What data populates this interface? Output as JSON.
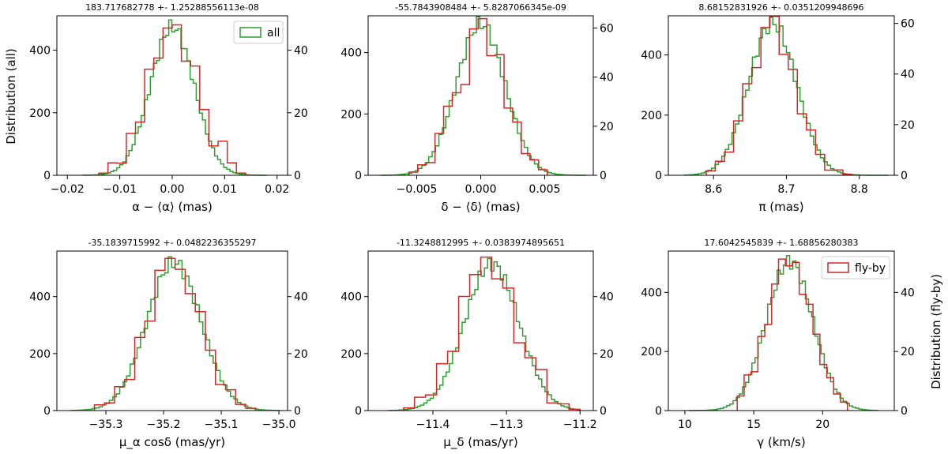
{
  "figure": {
    "left_ylabel": "Distribution (all)",
    "right_ylabel": "Distribution (fly-by)",
    "colors": {
      "all": "#2ca02c",
      "flyby": "#d62728",
      "axes": "#000000"
    }
  },
  "chart_data": [
    {
      "type": "histogram",
      "title": "183.717682778 +- 1.25288556113e-08",
      "xlabel": "α − ⟨α⟩ (mas)",
      "xlim": [
        -0.022,
        0.022
      ],
      "xticks": [
        -0.02,
        -0.01,
        0.0,
        0.01,
        0.02
      ],
      "xtick_labels": [
        "−0.02",
        "−0.01",
        "0.00",
        "0.01",
        "0.02"
      ],
      "ylim_left": [
        0,
        510
      ],
      "yticks_left": [
        0,
        200,
        400
      ],
      "ylim_right": [
        0,
        51
      ],
      "yticks_right": [
        0,
        20,
        40
      ],
      "legend": {
        "label": "all",
        "color": "#2ca02c",
        "placement": "top-right"
      },
      "series": [
        {
          "name": "all",
          "color": "#2ca02c",
          "mean": 0.0,
          "sigma": 0.0042,
          "peak": 475,
          "xmin": -0.017,
          "xmax": 0.018,
          "nbins": 60
        },
        {
          "name": "fly-by",
          "color": "#d62728",
          "mean": 0.0,
          "sigma": 0.0045,
          "peak": 48,
          "xmin": -0.014,
          "xmax": 0.014,
          "nbins": 16,
          "jitter": [
            0,
            2,
            -1,
            3,
            -2,
            4,
            -3,
            0,
            1,
            -4,
            5,
            2,
            -1,
            6,
            2,
            0
          ]
        }
      ]
    },
    {
      "type": "histogram",
      "title": "-55.7843908484 +- 5.8287066345e-09",
      "xlabel": "δ − ⟨δ⟩ (mas)",
      "xlim": [
        -0.0088,
        0.0088
      ],
      "xticks": [
        -0.005,
        0.0,
        0.005
      ],
      "xtick_labels": [
        "−0.005",
        "0.000",
        "0.005"
      ],
      "ylim_left": [
        0,
        520
      ],
      "yticks_left": [
        0,
        200,
        400
      ],
      "ylim_right": [
        0,
        65
      ],
      "yticks_right": [
        0,
        20,
        40,
        60
      ],
      "series": [
        {
          "name": "all",
          "color": "#2ca02c",
          "mean": 0.0,
          "sigma": 0.0019,
          "peak": 495,
          "xmin": -0.0078,
          "xmax": 0.0082,
          "nbins": 60
        },
        {
          "name": "fly-by",
          "color": "#d62728",
          "mean": 0.0,
          "sigma": 0.0019,
          "peak": 60,
          "xmin": -0.0056,
          "xmax": 0.0052,
          "nbins": 16,
          "jitter": [
            0,
            1,
            -2,
            3,
            4,
            -3,
            -12,
            2,
            4,
            -6,
            5,
            -4,
            2,
            -2,
            1,
            0
          ]
        }
      ]
    },
    {
      "type": "histogram",
      "title": "8.68152831926 +- 0.0351209948696",
      "xlabel": "π (mas)",
      "xlim": [
        8.538,
        8.848
      ],
      "xticks": [
        8.6,
        8.7,
        8.8
      ],
      "xtick_labels": [
        "8.6",
        "8.7",
        "8.8"
      ],
      "ylim_left": [
        0,
        530
      ],
      "yticks_left": [
        0,
        200,
        400
      ],
      "ylim_right": [
        0,
        63
      ],
      "yticks_right": [
        0,
        20,
        40,
        60
      ],
      "series": [
        {
          "name": "all",
          "color": "#2ca02c",
          "mean": 8.681,
          "sigma": 0.033,
          "peak": 505,
          "xmin": 8.56,
          "xmax": 8.84,
          "nbins": 60
        },
        {
          "name": "fly-by",
          "color": "#d62728",
          "mean": 8.681,
          "sigma": 0.032,
          "peak": 58,
          "xmin": 8.59,
          "xmax": 8.79,
          "nbins": 16,
          "jitter": [
            0,
            1,
            -1,
            2,
            4,
            -3,
            3,
            5,
            -4,
            2,
            -2,
            3,
            1,
            -1,
            1,
            0
          ]
        }
      ]
    },
    {
      "type": "histogram",
      "title": "-35.1839715992 +- 0.0482236355297",
      "xlabel": "μ_α cosδ (mas/yr)",
      "xlim": [
        -35.385,
        -34.985
      ],
      "xticks": [
        -35.3,
        -35.2,
        -35.1,
        -35.0
      ],
      "xtick_labels": [
        "−35.3",
        "−35.2",
        "−35.1",
        "−35.0"
      ],
      "ylim_left": [
        0,
        560
      ],
      "yticks_left": [
        0,
        200,
        400
      ],
      "ylim_right": [
        0,
        56
      ],
      "yticks_right": [
        0,
        20,
        40
      ],
      "series": [
        {
          "name": "all",
          "color": "#2ca02c",
          "mean": -35.182,
          "sigma": 0.047,
          "peak": 520,
          "xmin": -35.36,
          "xmax": -35.0,
          "nbins": 60
        },
        {
          "name": "fly-by",
          "color": "#d62728",
          "mean": -35.182,
          "sigma": 0.046,
          "peak": 52,
          "xmin": -35.32,
          "xmax": -35.04,
          "nbins": 16,
          "jitter": [
            1,
            0,
            2,
            -2,
            3,
            -3,
            4,
            2,
            -1,
            -2,
            3,
            1,
            -2,
            2,
            0,
            0
          ]
        }
      ]
    },
    {
      "type": "histogram",
      "title": "-11.3248812995 +- 0.0383974895651",
      "xlabel": "μ_δ (mas/yr)",
      "xlim": [
        -11.488,
        -11.182
      ],
      "xticks": [
        -11.4,
        -11.3,
        -11.2
      ],
      "xtick_labels": [
        "−11.4",
        "−11.3",
        "−11.2"
      ],
      "ylim_left": [
        0,
        560
      ],
      "yticks_left": [
        0,
        200,
        400
      ],
      "ylim_right": [
        0,
        56
      ],
      "yticks_right": [
        0,
        20,
        40
      ],
      "series": [
        {
          "name": "all",
          "color": "#2ca02c",
          "mean": -11.32,
          "sigma": 0.037,
          "peak": 515,
          "xmin": -11.46,
          "xmax": -11.2,
          "nbins": 60
        },
        {
          "name": "fly-by",
          "color": "#d62728",
          "mean": -11.325,
          "sigma": 0.038,
          "peak": 52,
          "xmin": -11.44,
          "xmax": -11.2,
          "nbins": 16,
          "jitter": [
            0,
            2,
            -1,
            3,
            -3,
            4,
            1,
            2,
            -3,
            3,
            -4,
            2,
            6,
            -1,
            1,
            0
          ]
        }
      ]
    },
    {
      "type": "histogram",
      "title": "17.6042545839 +- 1.68856280383",
      "xlabel": "γ (km/s)",
      "xlim": [
        8.8,
        25.2
      ],
      "xticks": [
        10,
        15,
        20
      ],
      "xtick_labels": [
        "10",
        "15",
        "20"
      ],
      "ylim_left": [
        0,
        540
      ],
      "yticks_left": [
        0,
        200,
        400
      ],
      "ylim_right": [
        0,
        54
      ],
      "yticks_right": [
        0,
        20,
        40
      ],
      "legend": {
        "label": "fly-by",
        "color": "#d62728",
        "placement": "top-right"
      },
      "series": [
        {
          "name": "all",
          "color": "#2ca02c",
          "mean": 17.6,
          "sigma": 1.7,
          "peak": 505,
          "xmin": 10.3,
          "xmax": 24.0,
          "nbins": 60
        },
        {
          "name": "fly-by",
          "color": "#d62728",
          "mean": 17.6,
          "sigma": 1.65,
          "peak": 50,
          "xmin": 13.8,
          "xmax": 21.8,
          "nbins": 16,
          "jitter": [
            0,
            3,
            -2,
            2,
            -3,
            2,
            4,
            -1,
            2,
            -3,
            2,
            1,
            -1,
            1,
            0,
            0
          ]
        }
      ]
    }
  ]
}
